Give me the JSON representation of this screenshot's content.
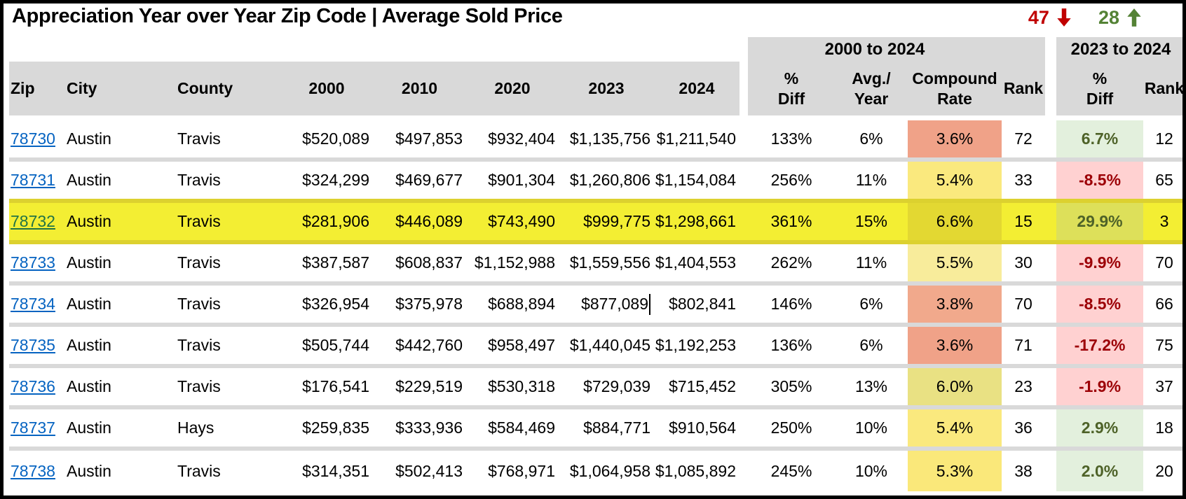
{
  "title": "Appreciation Year over Year Zip Code | Average Sold Price",
  "stats": {
    "down_count": "47",
    "down_icon": "arrow-down",
    "down_color": "#C00000",
    "up_count": "28",
    "up_icon": "arrow-up",
    "up_color": "#548235"
  },
  "header": {
    "columns": [
      "Zip",
      "City",
      "County",
      "2000",
      "2010",
      "2020",
      "2023",
      "2024"
    ],
    "group1": {
      "label": "2000 to 2024",
      "sub": [
        "%\nDiff",
        "Avg./\nYear",
        "Compound\nRate",
        "Rank"
      ]
    },
    "group2": {
      "label": "2023 to 2024",
      "sub": [
        "%\nDiff",
        "Rank"
      ]
    },
    "bg_color": "#D9D9D9"
  },
  "colors": {
    "link_blue": "#0563C1",
    "highlight_row": "#F3EE33",
    "positive_bg": "#E3F0DD",
    "positive_text": "#4E6228",
    "negative_bg": "#FFD1D1",
    "negative_text": "#9C0006"
  },
  "rows": [
    {
      "zip": "78730",
      "city": "Austin",
      "county": "Travis",
      "y2000": "$520,089",
      "y2010": "$497,853",
      "y2020": "$932,404",
      "y2023": "$1,135,756",
      "y2024": "$1,211,540",
      "pct_diff": "133%",
      "avg_year": "6%",
      "compound_rate": "3.6%",
      "rank": "72",
      "pct_diff_2324": "6.7%",
      "rank_2324": "12",
      "compound_bg": "#F0A288",
      "diff_bg": "#E3F0DD",
      "diff_text": "#4E6228",
      "highlight": false,
      "cursor_after_2023": false
    },
    {
      "zip": "78731",
      "city": "Austin",
      "county": "Travis",
      "y2000": "$324,299",
      "y2010": "$469,677",
      "y2020": "$901,304",
      "y2023": "$1,260,806",
      "y2024": "$1,154,084",
      "pct_diff": "256%",
      "avg_year": "11%",
      "compound_rate": "5.4%",
      "rank": "33",
      "pct_diff_2324": "-8.5%",
      "rank_2324": "65",
      "compound_bg": "#FAE97E",
      "diff_bg": "#FFD1D1",
      "diff_text": "#9C0006",
      "highlight": false,
      "cursor_after_2023": false
    },
    {
      "zip": "78732",
      "city": "Austin",
      "county": "Travis",
      "y2000": "$281,906",
      "y2010": "$446,089",
      "y2020": "$743,490",
      "y2023": "$999,775",
      "y2024": "$1,298,661",
      "pct_diff": "361%",
      "avg_year": "15%",
      "compound_rate": "6.6%",
      "rank": "15",
      "pct_diff_2324": "29.9%",
      "rank_2324": "3",
      "compound_bg": "#E3D832",
      "diff_bg": "#DDE05A",
      "diff_text": "#4E6228",
      "highlight": true,
      "zip_color": "#217346",
      "cursor_after_2023": false
    },
    {
      "zip": "78733",
      "city": "Austin",
      "county": "Travis",
      "y2000": "$387,587",
      "y2010": "$608,837",
      "y2020": "$1,152,988",
      "y2023": "$1,559,556",
      "y2024": "$1,404,553",
      "pct_diff": "262%",
      "avg_year": "11%",
      "compound_rate": "5.5%",
      "rank": "30",
      "pct_diff_2324": "-9.9%",
      "rank_2324": "70",
      "compound_bg": "#F8EC9B",
      "diff_bg": "#FFD1D1",
      "diff_text": "#9C0006",
      "highlight": false,
      "cursor_after_2023": false
    },
    {
      "zip": "78734",
      "city": "Austin",
      "county": "Travis",
      "y2000": "$326,954",
      "y2010": "$375,978",
      "y2020": "$688,894",
      "y2023": "$877,089",
      "y2024": "$802,841",
      "pct_diff": "146%",
      "avg_year": "6%",
      "compound_rate": "3.8%",
      "rank": "70",
      "pct_diff_2324": "-8.5%",
      "rank_2324": "66",
      "compound_bg": "#F1A98C",
      "diff_bg": "#FFD1D1",
      "diff_text": "#9C0006",
      "highlight": false,
      "cursor_after_2023": true
    },
    {
      "zip": "78735",
      "city": "Austin",
      "county": "Travis",
      "y2000": "$505,744",
      "y2010": "$442,760",
      "y2020": "$958,497",
      "y2023": "$1,440,045",
      "y2024": "$1,192,253",
      "pct_diff": "136%",
      "avg_year": "6%",
      "compound_rate": "3.6%",
      "rank": "71",
      "pct_diff_2324": "-17.2%",
      "rank_2324": "75",
      "compound_bg": "#F0A288",
      "diff_bg": "#FFD1D1",
      "diff_text": "#9C0006",
      "highlight": false,
      "cursor_after_2023": false
    },
    {
      "zip": "78736",
      "city": "Austin",
      "county": "Travis",
      "y2000": "$176,541",
      "y2010": "$229,519",
      "y2020": "$530,318",
      "y2023": "$729,039",
      "y2024": "$715,452",
      "pct_diff": "305%",
      "avg_year": "13%",
      "compound_rate": "6.0%",
      "rank": "23",
      "pct_diff_2324": "-1.9%",
      "rank_2324": "37",
      "compound_bg": "#E9E183",
      "diff_bg": "#FFD1D1",
      "diff_text": "#9C0006",
      "highlight": false,
      "cursor_after_2023": false
    },
    {
      "zip": "78737",
      "city": "Austin",
      "county": "Hays",
      "y2000": "$259,835",
      "y2010": "$333,936",
      "y2020": "$584,469",
      "y2023": "$884,771",
      "y2024": "$910,564",
      "pct_diff": "250%",
      "avg_year": "10%",
      "compound_rate": "5.4%",
      "rank": "36",
      "pct_diff_2324": "2.9%",
      "rank_2324": "18",
      "compound_bg": "#FAE97E",
      "diff_bg": "#E3F0DD",
      "diff_text": "#4E6228",
      "highlight": false,
      "cursor_after_2023": false
    },
    {
      "zip": "78738",
      "city": "Austin",
      "county": "Travis",
      "y2000": "$314,351",
      "y2010": "$502,413",
      "y2020": "$768,971",
      "y2023": "$1,064,958",
      "y2024": "$1,085,892",
      "pct_diff": "245%",
      "avg_year": "10%",
      "compound_rate": "5.3%",
      "rank": "38",
      "pct_diff_2324": "2.0%",
      "rank_2324": "20",
      "compound_bg": "#FAE87A",
      "diff_bg": "#E3F0DD",
      "diff_text": "#4E6228",
      "highlight": false,
      "cursor_after_2023": false
    }
  ]
}
